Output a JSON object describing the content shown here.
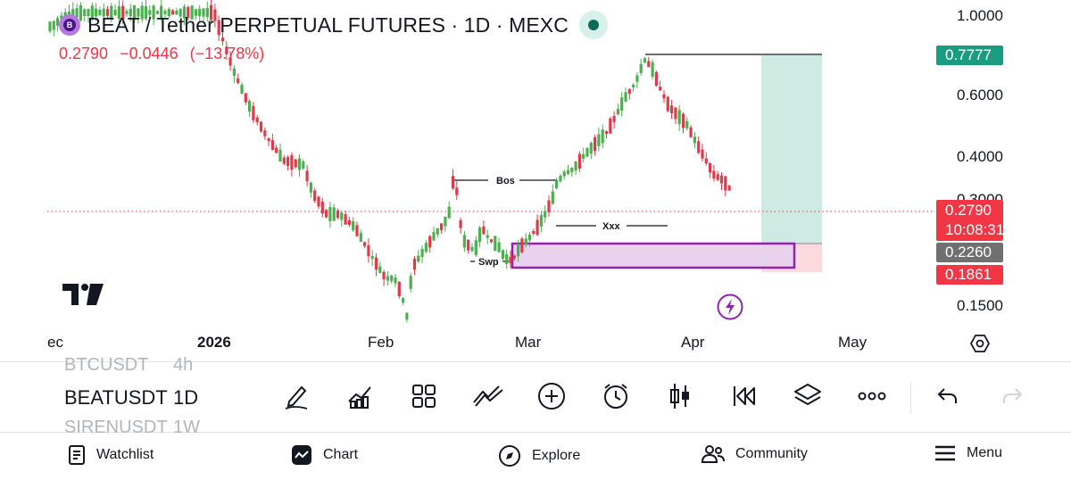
{
  "header": {
    "title": "BEAT / Tether PERPETUAL FUTURES · 1D · MEXC",
    "open_price": "0.2790",
    "change": "−0.0446",
    "change_pct": "(−13.78%)"
  },
  "price_axis": {
    "labels": [
      "1.0000",
      "0.6000",
      "0.4000",
      "0.3000",
      "0.1500"
    ]
  },
  "price_tags": {
    "target": "0.7777",
    "last_price": "0.2790",
    "countdown": "10:08:31",
    "entry": "0.2260",
    "stop": "0.1861"
  },
  "time_axis": {
    "labels": [
      "ec",
      "2026",
      "Feb",
      "Mar",
      "Apr",
      "May"
    ]
  },
  "annotations": {
    "bos": "Bos",
    "xxx": "Xxx",
    "swp": "Swp"
  },
  "symbol_list": [
    {
      "symbol": "BTCUSDT",
      "interval": "4h"
    },
    {
      "symbol": "BEATUSDT",
      "interval": "1D"
    },
    {
      "symbol": "SIRENUSDT",
      "interval": "1W"
    }
  ],
  "toolbar_icons": [
    "drawing-pen-icon",
    "indicators-icon",
    "layout-grid-icon",
    "compare-icon",
    "add-icon",
    "alert-clock-icon",
    "candle-type-icon",
    "replay-icon",
    "layers-icon",
    "more-icon",
    "undo-icon",
    "redo-icon"
  ],
  "nav": {
    "watchlist": "Watchlist",
    "chart": "Chart",
    "explore": "Explore",
    "community": "Community",
    "menu": "Menu"
  },
  "colors": {
    "up": "#4caf50",
    "down": "#e0394a",
    "target_zone": "#cfeae3",
    "stop_zone": "#fbd9dc",
    "order_block": "#e8d2ee",
    "order_block_border": "#8e24aa",
    "target_tag": "#1a9c80",
    "last_price_tag": "#f23645",
    "entry_tag": "#707070"
  }
}
